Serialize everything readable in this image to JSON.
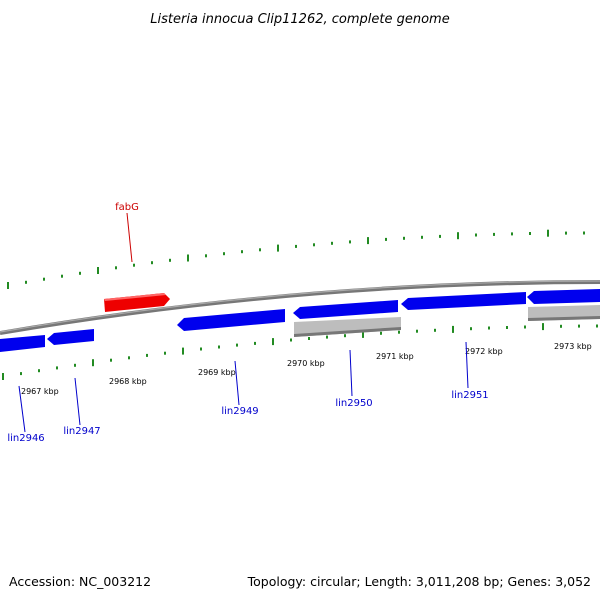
{
  "title": "Listeria innocua Clip11262, complete genome",
  "accession_text": "Accession: NC_003212",
  "summary_text": "Topology: circular; Length: 3,011,208 bp; Genes: 3,052",
  "colors": {
    "forward_gene": "#0000ee",
    "highlight_gene": "#ee0000",
    "other_feature": "#bbbbbb",
    "backbone": "#888888",
    "ticks": "#228b22",
    "label_blue": "#0000cc",
    "label_red": "#cc0000"
  },
  "kbp_labels": [
    "2967 kbp",
    "2968 kbp",
    "2969 kbp",
    "2970 kbp",
    "2971 kbp",
    "2972 kbp",
    "2973 kbp"
  ],
  "gene_labels": [
    {
      "name": "fabG",
      "color": "red"
    },
    {
      "name": "lin2946",
      "color": "blue"
    },
    {
      "name": "lin2947",
      "color": "blue"
    },
    {
      "name": "lin2949",
      "color": "blue"
    },
    {
      "name": "lin2950",
      "color": "blue"
    },
    {
      "name": "lin2951",
      "color": "blue"
    }
  ]
}
